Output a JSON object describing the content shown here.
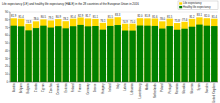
{
  "chart_data": {
    "type": "bar",
    "title": "Life expectancy (LE) and healthy life expectancy (HALE) in the 28 countries of the European Union in 2016",
    "categories": [
      "Austria",
      "Belgium",
      "Bulgaria",
      "Croatia",
      "Cyprus",
      "Czechia",
      "Denmark",
      "Estonia",
      "Finland",
      "France",
      "Germany",
      "Greece",
      "Hungary",
      "Ireland",
      "Italy",
      "Latvia",
      "Lithuania",
      "Luxembourg",
      "Malta",
      "Netherlands",
      "Poland",
      "Portugal",
      "Romania",
      "Slovakia",
      "Slovenia",
      "Spain",
      "Sweden",
      "United Kingdom"
    ],
    "series": [
      {
        "name": "Life expectancy",
        "color": "#ffd700",
        "data_labels": true,
        "values": [
          81.9,
          81.4,
          74.8,
          78.0,
          80.5,
          79.1,
          80.9,
          78.2,
          81.4,
          82.9,
          81.7,
          81.1,
          76.1,
          81.5,
          83.3,
          74.9,
          75.0,
          82.0,
          81.8,
          81.6,
          78.0,
          81.5,
          75.8,
          77.4,
          81.2,
          83.1,
          82.0,
          81.4
        ],
        "value_labels": [
          "81.9",
          "81.4",
          "74.8",
          "78.0",
          "80.5",
          "79.1",
          "80.9",
          "78.2",
          "81.4",
          "82.9",
          "81.7",
          "81.1",
          "76.1",
          "81.5",
          "83.3",
          "74.9",
          "75.0",
          "82.0",
          "81.8",
          "81.6",
          "78.0",
          "81.5",
          "75.8",
          "77.4",
          "81.2",
          "83.1",
          "82.0",
          "81.4"
        ]
      },
      {
        "name": "Healthy life expectancy",
        "color": "#008000",
        "values": [
          72.4,
          71.6,
          66.4,
          69.3,
          72.4,
          70.0,
          71.8,
          69.0,
          71.7,
          73.4,
          71.6,
          72.0,
          67.3,
          72.1,
          73.2,
          66.2,
          66.1,
          72.6,
          72.4,
          72.1,
          68.7,
          71.9,
          67.2,
          68.5,
          71.1,
          73.8,
          72.4,
          71.9
        ]
      }
    ],
    "ylim": [
      0,
      90
    ],
    "yticks": [
      0,
      10,
      20,
      30,
      40,
      50,
      60,
      70,
      80,
      90
    ],
    "grid": true,
    "legend": "top-right"
  }
}
